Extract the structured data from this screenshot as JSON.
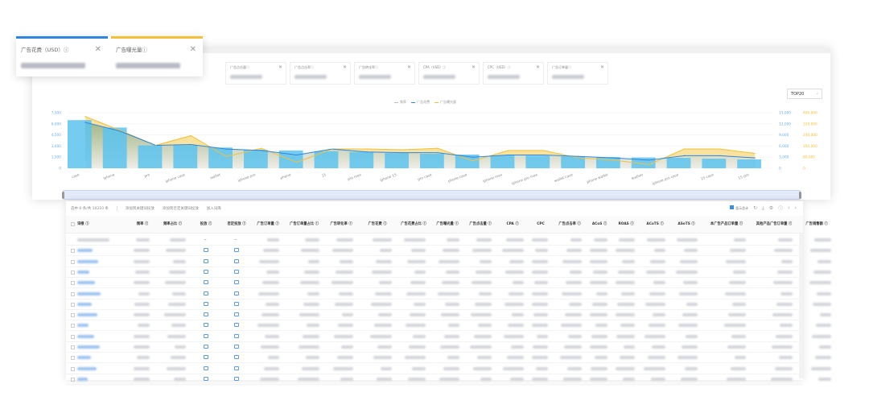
{
  "popup_cards": [
    {
      "label": "广告花费（USD）ⓘ",
      "color": "#2f86e0"
    },
    {
      "label": "广告曝光量ⓘ",
      "color": "#f2c037"
    }
  ],
  "metric_cards": [
    "广告点击量ⓘ",
    "广告点击率ⓘ",
    "广告转化率ⓘ",
    "CPA（USD）ⓘ",
    "CPC（USD）ⓘ",
    "广告订单量ⓘ"
  ],
  "close_glyph": "✕",
  "legend": [
    {
      "label": "频率",
      "color": "#bbbbbb"
    },
    {
      "label": "广告花费",
      "color": "#2f86e0"
    },
    {
      "label": "广告曝光量",
      "color": "#f2c037"
    }
  ],
  "top_select": {
    "value": "TOP20",
    "chevron": "⌄"
  },
  "chart_data": {
    "type": "bar",
    "categories": [
      "case",
      "iphone",
      "pro",
      "iphone case",
      "wallet",
      "iphone pro",
      "phone",
      "15",
      "pro max",
      "iphone 15",
      "pro case",
      "phone case",
      "iphone max",
      "iphone pro max",
      "wallet case",
      "phone wallet",
      "leather",
      "iphone pro case",
      "15 case",
      "15 pro"
    ],
    "series": [
      {
        "name": "频率",
        "type": "bar",
        "axis": "left",
        "values": [
          6500,
          5500,
          3100,
          3100,
          2800,
          2500,
          2400,
          2300,
          2200,
          2050,
          1950,
          1850,
          1750,
          1700,
          1600,
          1500,
          1450,
          1400,
          1300,
          1200
        ]
      },
      {
        "name": "广告花费",
        "type": "line",
        "axis": "right1",
        "values": [
          12400,
          10000,
          6200,
          6400,
          5200,
          4800,
          3600,
          5200,
          4400,
          4200,
          4200,
          3000,
          3600,
          3600,
          3200,
          2800,
          2200,
          3400,
          3400,
          2800
        ]
      },
      {
        "name": "广告曝光量",
        "type": "area",
        "axis": "right2",
        "values": [
          373000,
          272000,
          165000,
          235000,
          85000,
          144000,
          43000,
          139000,
          139000,
          133000,
          144000,
          53000,
          128000,
          128000,
          75000,
          59000,
          27000,
          139000,
          139000,
          107000
        ]
      }
    ],
    "axes": {
      "left": {
        "range": [
          0,
          7500
        ],
        "ticks": [
          "0",
          "1,500",
          "3,000",
          "4,500",
          "6,000",
          "7,500"
        ]
      },
      "right1": {
        "range": [
          0,
          15000
        ],
        "ticks": [
          "0",
          "3,000",
          "6,000",
          "9,000",
          "12,000",
          "15,000"
        ]
      },
      "right2": {
        "range": [
          0,
          400000
        ],
        "ticks": [
          "0",
          "80,000",
          "160,000",
          "240,000",
          "320,000",
          "400,000"
        ]
      }
    },
    "legend_position": "top-center",
    "grid": true
  },
  "toolbar": {
    "selected": "选中 0 条/共 10210 条",
    "add_keyword": "添加到关键词投放",
    "add_negative": "添加到否定关键词投放",
    "add_lib": "加入词库",
    "show_total": "显示总计",
    "icons": [
      "↻",
      "⤓",
      "⚙",
      "ⓘ",
      "‹",
      "›"
    ]
  },
  "columns": [
    "词根 ⓘ",
    "频率 ⓘ",
    "频率占比 ⓘ",
    "投放 ⓘ",
    "否定投放 ⓘ",
    "广告订单量 ⓘ",
    "广告订单量占比 ⓘ",
    "广告转化率 ⓘ",
    "广告花费 ⓘ",
    "广告花费占比 ⓘ",
    "广告曝光量 ⓘ",
    "广告点击量 ⓘ",
    "CPA ⓘ",
    "CPC",
    "广告点击率 ⓘ",
    "ACoS ⓘ",
    "ROAS ⓘ",
    "ACoTS ⓘ",
    "ASoTS ⓘ",
    "本广告产品订单量 ⓘ",
    "其他产品广告订单量 ⓘ",
    "广告销售额 ⓘ"
  ],
  "total_dash": "--"
}
